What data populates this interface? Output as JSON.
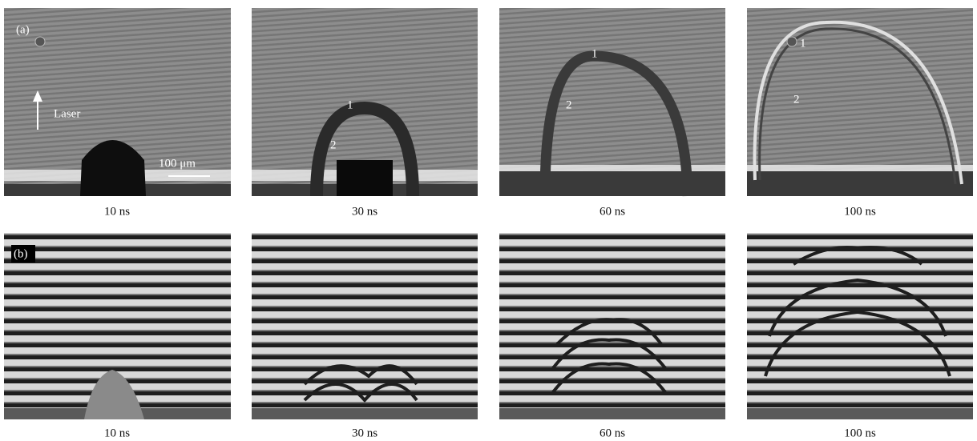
{
  "rows": [
    {
      "label": "(a)",
      "panels": [
        {
          "caption": "10 ns",
          "annotations": [
            "Laser",
            "100 μm"
          ]
        },
        {
          "caption": "30 ns",
          "annotations": [
            "1",
            "2"
          ]
        },
        {
          "caption": "60 ns",
          "annotations": [
            "1",
            "2"
          ]
        },
        {
          "caption": "100 ns",
          "annotations": [
            "1",
            "2"
          ]
        }
      ]
    },
    {
      "label": "(b)",
      "panels": [
        {
          "caption": "10 ns"
        },
        {
          "caption": "30 ns"
        },
        {
          "caption": "60 ns"
        },
        {
          "caption": "100 ns"
        }
      ]
    }
  ]
}
